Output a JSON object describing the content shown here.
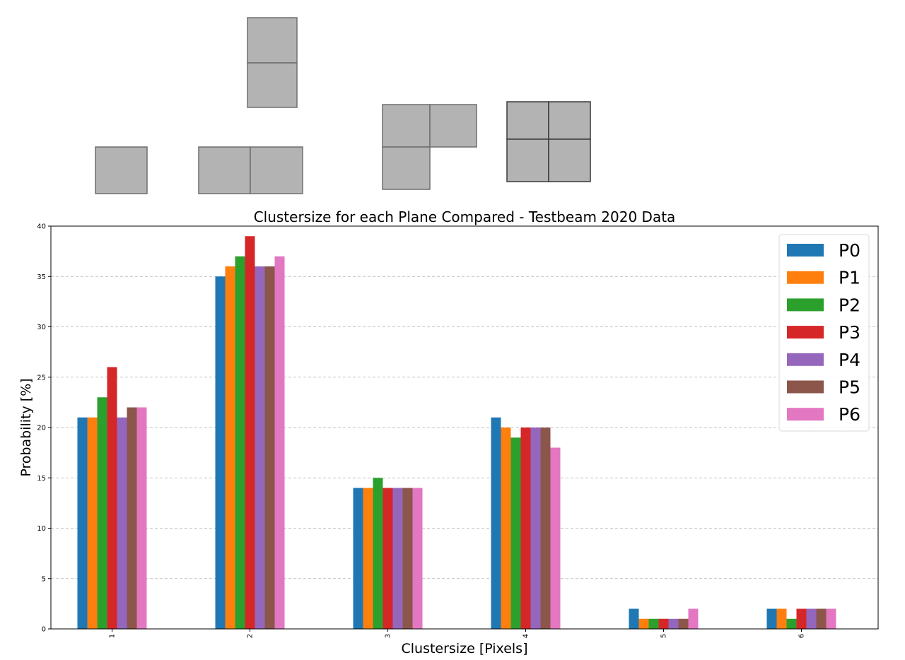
{
  "chart_data": {
    "type": "bar",
    "title": "Clustersize for each Plane Compared - Testbeam 2020 Data",
    "xlabel": "Clustersize [Pixels]",
    "ylabel": "Probability [%]",
    "categories": [
      "1",
      "2",
      "3",
      "4",
      "5",
      "6"
    ],
    "ylim": [
      0,
      40
    ],
    "yticks": [
      "0",
      "5",
      "10",
      "15",
      "20",
      "25",
      "30",
      "35",
      "40"
    ],
    "grid": "horizontal dashed",
    "legend_position": "top-right",
    "series": [
      {
        "name": "P0",
        "color": "#1f77b4",
        "values": [
          21,
          35,
          14,
          21,
          2,
          2
        ]
      },
      {
        "name": "P1",
        "color": "#ff7f0e",
        "values": [
          21,
          36,
          14,
          20,
          1,
          2
        ]
      },
      {
        "name": "P2",
        "color": "#2ca02c",
        "values": [
          23,
          37,
          15,
          19,
          1,
          1
        ]
      },
      {
        "name": "P3",
        "color": "#d62728",
        "values": [
          26,
          39,
          14,
          20,
          1,
          2
        ]
      },
      {
        "name": "P4",
        "color": "#9467bd",
        "values": [
          21,
          36,
          14,
          20,
          1,
          2
        ]
      },
      {
        "name": "P5",
        "color": "#8c564b",
        "values": [
          22,
          36,
          14,
          20,
          1,
          2
        ]
      },
      {
        "name": "P6",
        "color": "#e377c2",
        "values": [
          22,
          37,
          14,
          18,
          2,
          2
        ]
      }
    ]
  },
  "cluster_shape_icons": [
    "single-pixel",
    "two-pixel-vertical",
    "two-pixel-horizontal",
    "three-pixel-l",
    "four-pixel-square"
  ]
}
